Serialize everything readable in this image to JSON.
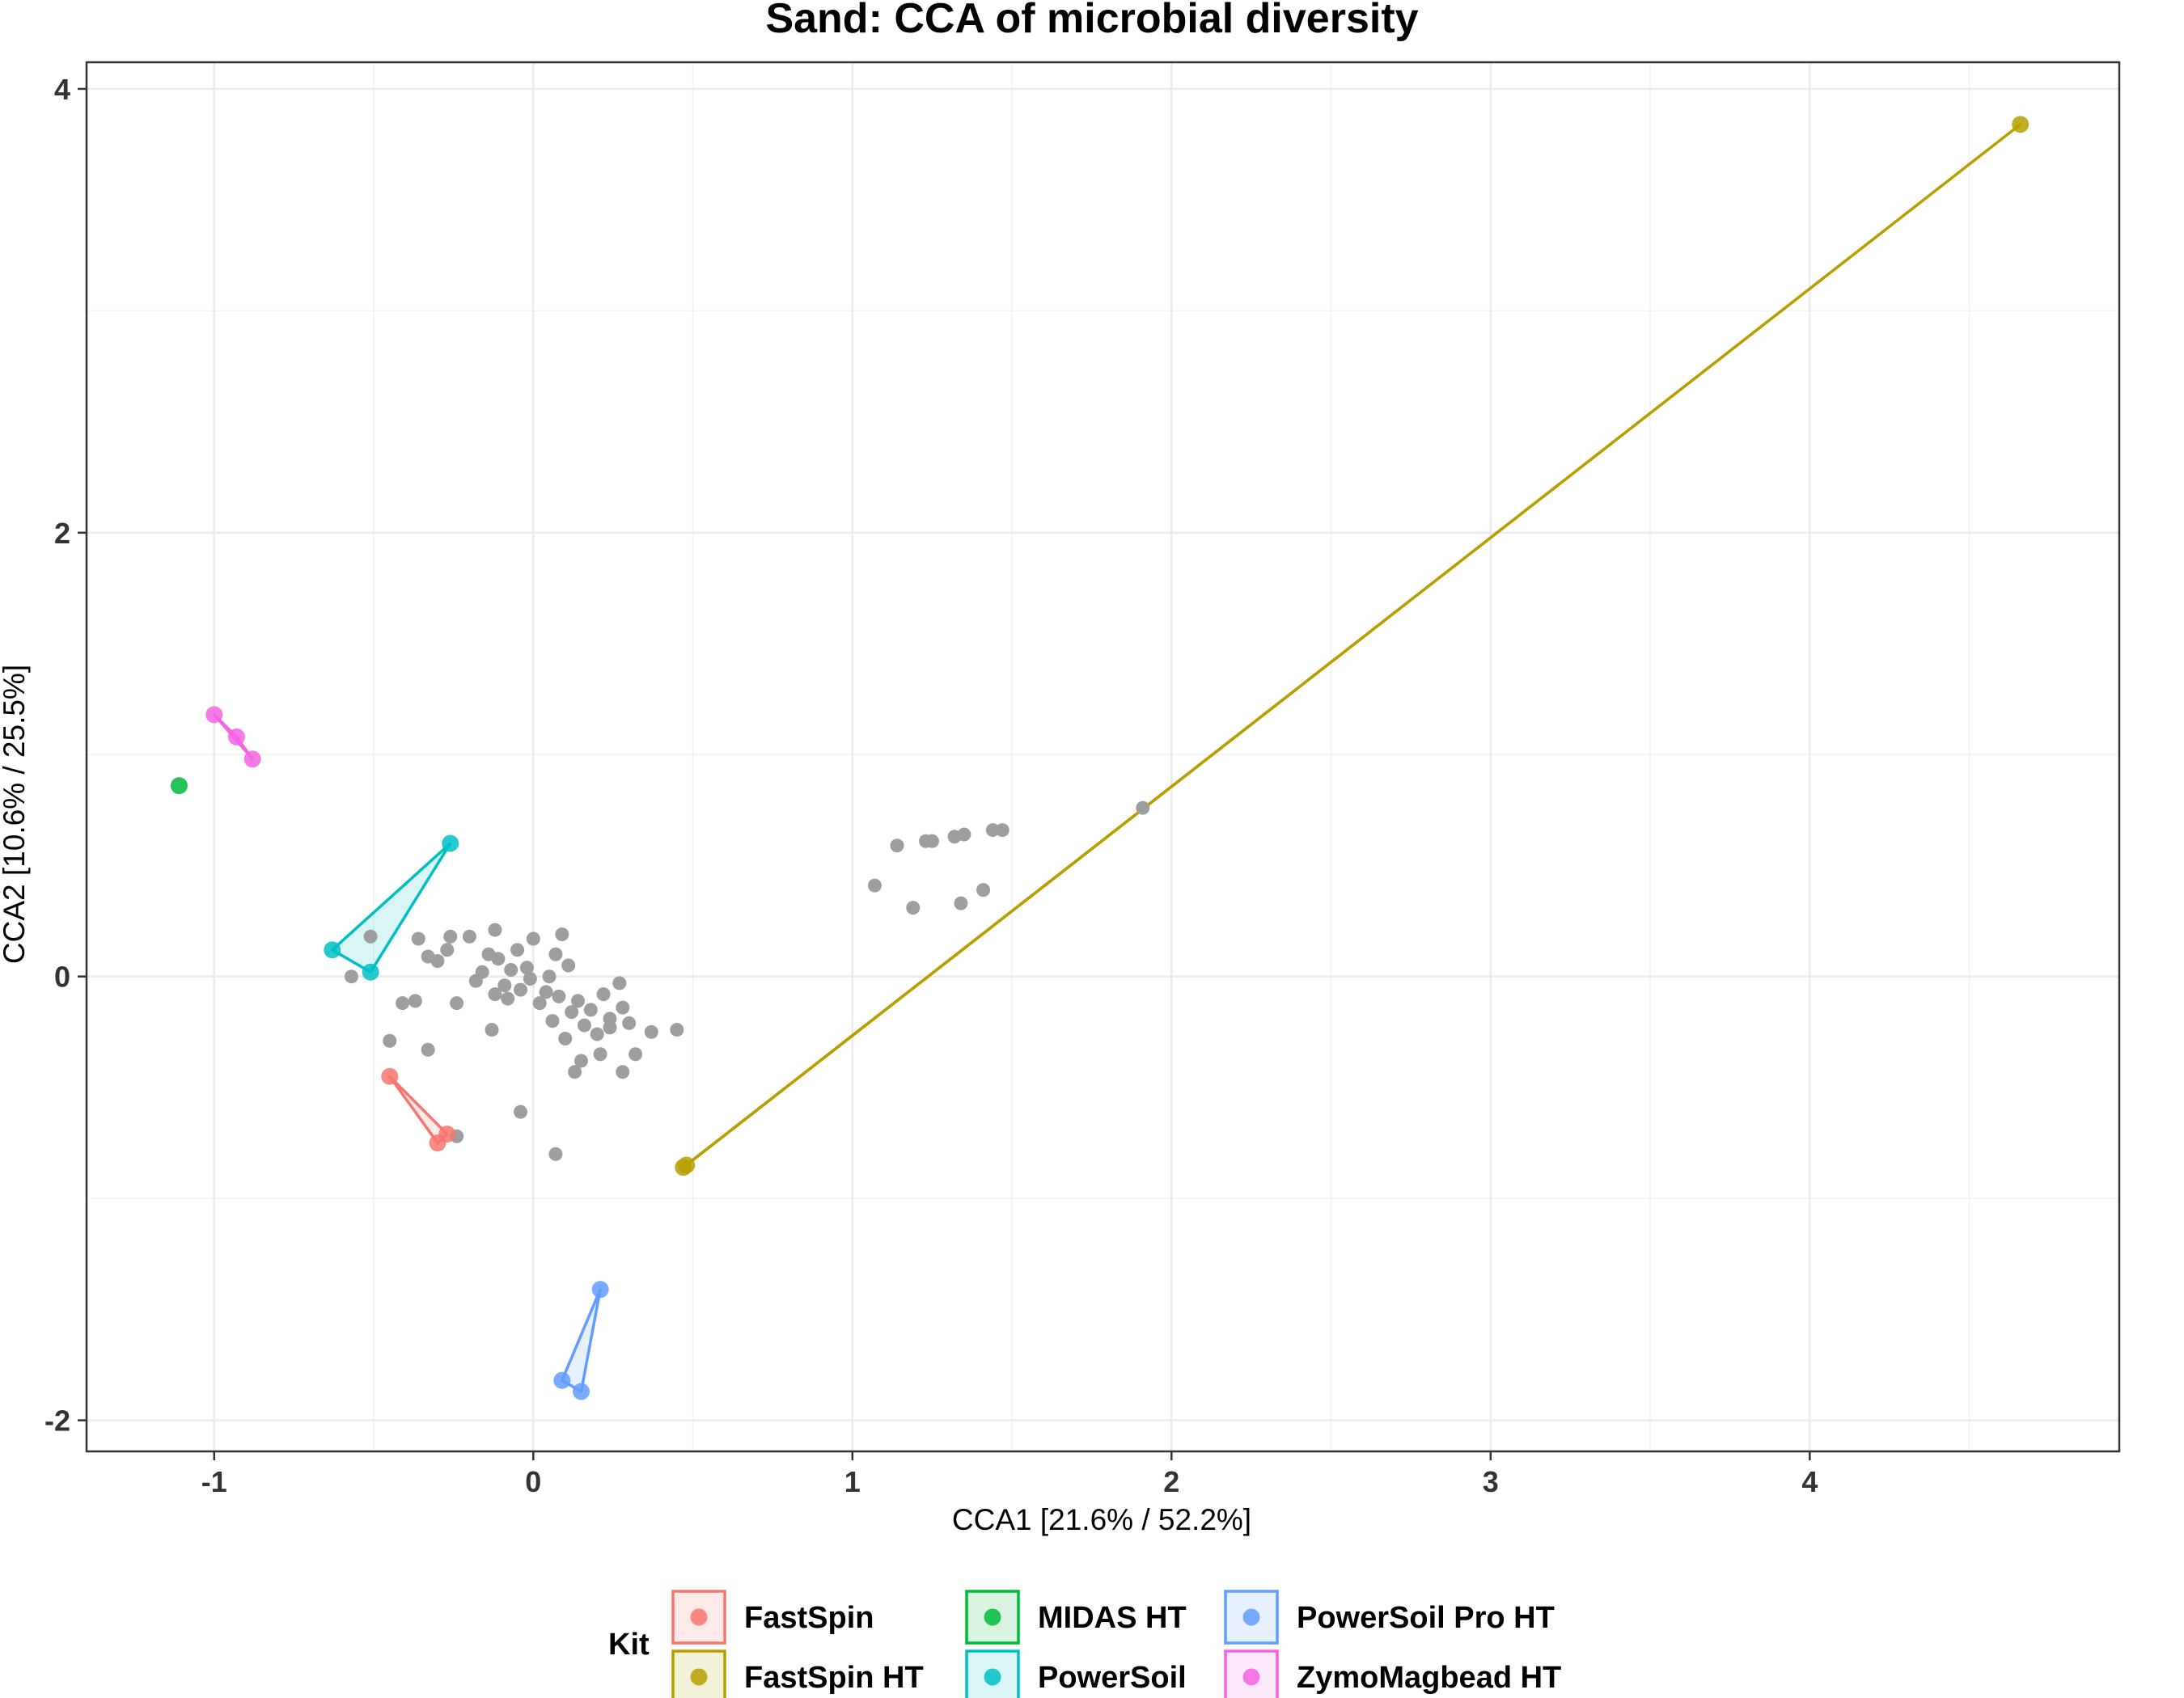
{
  "chart_data": {
    "type": "scatter",
    "title": "Sand: CCA of microbial diversity",
    "xlabel": "CCA1 [21.6% / 52.2%]",
    "ylabel": "CCA2 [10.6% / 25.5%]",
    "xlim": [
      -1.4,
      4.97
    ],
    "ylim": [
      -2.14,
      4.12
    ],
    "x_ticks": [
      -1,
      0,
      1,
      2,
      3,
      4
    ],
    "y_ticks": [
      -2,
      0,
      2,
      4
    ],
    "grid": true,
    "legend_title": "Kit",
    "legend_position": "bottom",
    "series": [
      {
        "name": "FastSpin",
        "color": "#F8766D",
        "points": [
          [
            -0.45,
            -0.45
          ],
          [
            -0.27,
            -0.71
          ],
          [
            -0.3,
            -0.75
          ]
        ]
      },
      {
        "name": "FastSpin HT",
        "color": "#B79F00",
        "points": [
          [
            4.66,
            3.84
          ],
          [
            0.47,
            -0.86
          ],
          [
            0.48,
            -0.85
          ]
        ]
      },
      {
        "name": "MIDAS HT",
        "color": "#00BA38",
        "points": [
          [
            -1.11,
            0.86
          ]
        ]
      },
      {
        "name": "PowerSoil",
        "color": "#00BFC4",
        "points": [
          [
            -0.26,
            0.6
          ],
          [
            -0.63,
            0.12
          ],
          [
            -0.51,
            0.02
          ]
        ]
      },
      {
        "name": "PowerSoil Pro HT",
        "color": "#619CFF",
        "points": [
          [
            0.21,
            -1.41
          ],
          [
            0.09,
            -1.82
          ],
          [
            0.15,
            -1.87
          ]
        ]
      },
      {
        "name": "ZymoMagbead HT",
        "color": "#F564E3",
        "points": [
          [
            -1.0,
            1.18
          ],
          [
            -0.93,
            1.08
          ],
          [
            -0.88,
            0.98
          ]
        ]
      }
    ],
    "species_points": {
      "color": "#9E9E9E",
      "points": [
        [
          1.14,
          0.59
        ],
        [
          1.23,
          0.61
        ],
        [
          1.25,
          0.61
        ],
        [
          1.32,
          0.63
        ],
        [
          1.35,
          0.64
        ],
        [
          1.44,
          0.66
        ],
        [
          1.47,
          0.66
        ],
        [
          1.07,
          0.41
        ],
        [
          1.19,
          0.31
        ],
        [
          1.34,
          0.33
        ],
        [
          1.41,
          0.39
        ],
        [
          1.91,
          0.76
        ],
        [
          -0.24,
          -0.72
        ],
        [
          -0.57,
          0.0
        ],
        [
          -0.51,
          0.18
        ],
        [
          0.07,
          -0.8
        ],
        [
          -0.04,
          -0.61
        ],
        [
          -0.37,
          -0.11
        ],
        [
          -0.33,
          -0.33
        ],
        [
          -0.45,
          -0.29
        ],
        [
          -0.41,
          -0.12
        ],
        [
          -0.33,
          0.09
        ],
        [
          -0.36,
          0.17
        ],
        [
          -0.26,
          0.18
        ],
        [
          -0.27,
          0.12
        ],
        [
          -0.3,
          0.07
        ],
        [
          -0.24,
          -0.12
        ],
        [
          -0.13,
          -0.24
        ],
        [
          0.13,
          -0.43
        ],
        [
          0.28,
          -0.43
        ],
        [
          0.21,
          -0.35
        ],
        [
          0.45,
          -0.24
        ],
        [
          0.37,
          -0.25
        ],
        [
          0.27,
          -0.03
        ],
        [
          0.1,
          -0.28
        ],
        [
          0.15,
          -0.38
        ],
        [
          0.32,
          -0.35
        ],
        [
          0.24,
          -0.23
        ],
        [
          0.04,
          -0.07
        ],
        [
          0.0,
          0.17
        ],
        [
          0.09,
          0.19
        ],
        [
          -0.12,
          0.21
        ],
        [
          -0.2,
          0.18
        ],
        [
          -0.08,
          -0.1
        ],
        [
          -0.04,
          -0.06
        ],
        [
          0.06,
          -0.2
        ],
        [
          0.18,
          -0.15
        ],
        [
          0.22,
          -0.08
        ],
        [
          0.3,
          -0.21
        ],
        [
          0.14,
          -0.11
        ],
        [
          -0.16,
          0.02
        ],
        [
          -0.11,
          0.08
        ],
        [
          -0.05,
          0.12
        ],
        [
          -0.02,
          0.04
        ],
        [
          -0.09,
          -0.04
        ],
        [
          -0.14,
          0.1
        ],
        [
          -0.18,
          -0.02
        ],
        [
          0.02,
          -0.12
        ],
        [
          0.08,
          -0.09
        ],
        [
          0.12,
          -0.16
        ],
        [
          0.16,
          -0.22
        ],
        [
          0.2,
          -0.26
        ],
        [
          0.24,
          -0.19
        ],
        [
          0.28,
          -0.14
        ],
        [
          0.11,
          0.05
        ],
        [
          0.07,
          0.1
        ],
        [
          -0.07,
          0.03
        ],
        [
          -0.12,
          -0.08
        ],
        [
          0.05,
          0.0
        ],
        [
          -0.01,
          -0.01
        ]
      ]
    }
  }
}
